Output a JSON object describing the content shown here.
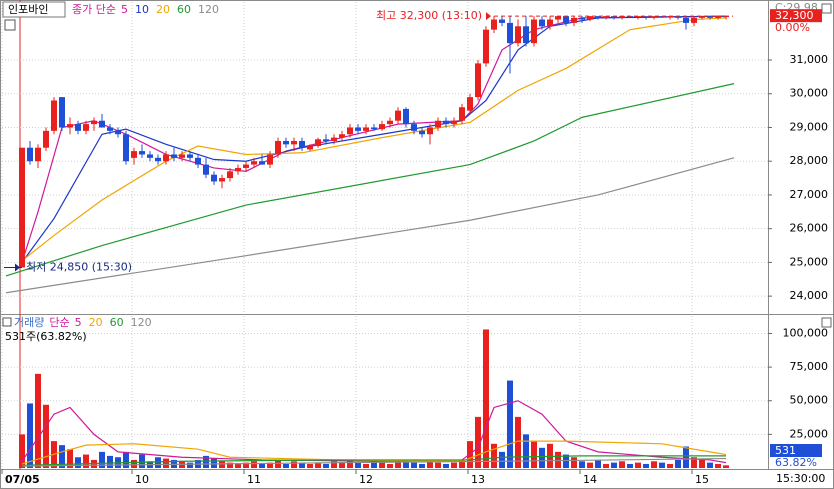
{
  "chart_data": [
    {
      "type": "candlestick",
      "name": "인포바인",
      "ma_label": "종가 단순",
      "open": [
        24850,
        28400,
        28000,
        28400,
        28900,
        29900,
        29000,
        29100,
        28900,
        29100,
        29200,
        29000,
        28900,
        28800,
        28100,
        28300,
        28200,
        28100,
        28000,
        28200,
        28100,
        28200,
        28100,
        27900,
        27600,
        27400,
        27500,
        27700,
        27800,
        27900,
        28000,
        27900,
        28200,
        28600,
        28500,
        28600,
        28350,
        28450,
        28650,
        28600,
        28700,
        28800,
        29000,
        28900,
        29000,
        28950,
        29100,
        29200,
        29550,
        29100,
        28900,
        28800,
        29000,
        29200,
        29100,
        29200,
        29500,
        29900,
        30900,
        31900,
        32200,
        32100,
        31500,
        32000,
        31500,
        32200,
        32000,
        32200,
        32300,
        32100,
        32250,
        32200,
        32300,
        32250,
        32300,
        32250,
        32300,
        32280,
        32300,
        32250,
        32300,
        32280,
        32300,
        32250,
        32100,
        32250,
        32300,
        32250,
        32300
      ],
      "high": [
        28400,
        28600,
        28500,
        29000,
        29900,
        29900,
        29300,
        29200,
        29200,
        29300,
        29400,
        29100,
        29000,
        28900,
        28400,
        28500,
        28300,
        28200,
        28300,
        28400,
        28300,
        28300,
        28200,
        28100,
        27700,
        27600,
        27800,
        27900,
        28000,
        28100,
        28200,
        28300,
        28700,
        28700,
        28700,
        28700,
        28500,
        28700,
        28800,
        28800,
        28900,
        29100,
        29100,
        29100,
        29100,
        29200,
        29300,
        29600,
        29600,
        29200,
        29000,
        29100,
        29300,
        29300,
        29300,
        29700,
        30000,
        31000,
        32000,
        32300,
        32300,
        32300,
        32200,
        32300,
        32300,
        32300,
        32300,
        32300,
        32300,
        32300,
        32300,
        32300,
        32300,
        32300,
        32300,
        32300,
        32300,
        32300,
        32300,
        32300,
        32300,
        32300,
        32300,
        32300,
        32300,
        32300,
        32300,
        32300,
        32300
      ],
      "low": [
        24850,
        27900,
        27800,
        28300,
        28800,
        28900,
        28800,
        28800,
        28800,
        28900,
        29000,
        28800,
        28700,
        27900,
        27900,
        28100,
        28000,
        27900,
        27900,
        28000,
        28000,
        28000,
        27800,
        27500,
        27300,
        27200,
        27400,
        27600,
        27700,
        27800,
        27900,
        27800,
        28100,
        28400,
        28300,
        28300,
        28300,
        28400,
        28500,
        28500,
        28600,
        28700,
        28800,
        28800,
        28900,
        28900,
        29000,
        29100,
        29000,
        28800,
        28700,
        28500,
        28900,
        29000,
        29000,
        29100,
        29400,
        29800,
        30800,
        31800,
        32000,
        30600,
        31400,
        31400,
        31400,
        31900,
        31900,
        32100,
        32000,
        32000,
        32100,
        32150,
        32200,
        32200,
        32200,
        32200,
        32250,
        32200,
        32200,
        32200,
        32250,
        32200,
        32200,
        31900,
        32000,
        32200,
        32200,
        32200,
        32200
      ],
      "close": [
        28400,
        28000,
        28400,
        28900,
        29800,
        29000,
        29100,
        28900,
        29100,
        29200,
        29000,
        28900,
        28800,
        28000,
        28300,
        28200,
        28100,
        28000,
        28200,
        28100,
        28200,
        28100,
        27900,
        27600,
        27400,
        27500,
        27700,
        27800,
        27900,
        28000,
        27900,
        28200,
        28600,
        28500,
        28600,
        28400,
        28450,
        28650,
        28600,
        28700,
        28800,
        29000,
        28900,
        29000,
        28950,
        29100,
        29200,
        29500,
        29100,
        28900,
        28800,
        29000,
        29200,
        29100,
        29200,
        29600,
        29900,
        30900,
        31900,
        32200,
        32100,
        31500,
        32000,
        31500,
        32200,
        32000,
        32200,
        32300,
        32100,
        32250,
        32200,
        32300,
        32250,
        32300,
        32250,
        32300,
        32280,
        32300,
        32250,
        32300,
        32280,
        32300,
        32250,
        32100,
        32250,
        32300,
        32250,
        32300,
        32300
      ],
      "up_color": "#e8211f",
      "down_color": "#1f4fd6",
      "series": [
        {
          "name": "5",
          "color": "#d0189a",
          "x": [
            0,
            2,
            5,
            9,
            13,
            18,
            24,
            28,
            33,
            40,
            47,
            55,
            57,
            60,
            64,
            70,
            88
          ],
          "values": [
            25000,
            26500,
            29000,
            29200,
            28800,
            28200,
            27800,
            27700,
            28300,
            28700,
            29100,
            29200,
            29700,
            31300,
            31900,
            32250,
            32300
          ]
        },
        {
          "name": "10",
          "color": "#1a35c9",
          "x": [
            0,
            4,
            10,
            13,
            18,
            24,
            28,
            35,
            45,
            55,
            58,
            62,
            66,
            72,
            88
          ],
          "values": [
            25000,
            26300,
            28800,
            28950,
            28500,
            28050,
            28000,
            28400,
            28800,
            29200,
            29800,
            31300,
            32000,
            32250,
            32300
          ]
        },
        {
          "name": "20",
          "color": "#f0a500",
          "x": [
            0,
            4,
            10,
            18,
            22,
            28,
            35,
            45,
            56,
            62,
            68,
            76,
            84,
            88
          ],
          "values": [
            25050,
            25800,
            26850,
            28000,
            28450,
            28200,
            28250,
            28700,
            29150,
            30100,
            30750,
            31900,
            32200,
            32250
          ]
        },
        {
          "name": "60",
          "color": "#1f9a2e",
          "x": [
            -2,
            10,
            28,
            56,
            64,
            70,
            89
          ],
          "values": [
            24600,
            25500,
            26700,
            27900,
            28600,
            29300,
            30300
          ]
        },
        {
          "name": "120",
          "color": "#8c8c8c",
          "x": [
            -2,
            28,
            56,
            72,
            89
          ],
          "values": [
            24100,
            25200,
            26250,
            27000,
            28100
          ]
        }
      ],
      "xlim": [
        -2.5,
        93.25
      ],
      "ylim": [
        23500,
        32720
      ],
      "xticks": [
        {
          "value": -2.5,
          "label": "07/05"
        },
        {
          "value": 13.75,
          "label": "10"
        },
        {
          "value": 27.75,
          "label": "11"
        },
        {
          "value": 41.75,
          "label": "12"
        },
        {
          "value": 55.75,
          "label": "13"
        },
        {
          "value": 69.75,
          "label": "14"
        },
        {
          "value": 83.75,
          "label": "15"
        }
      ],
      "yticks": [
        {
          "value": 24000,
          "label": "24,000"
        },
        {
          "value": 25000,
          "label": "25,000"
        },
        {
          "value": 26000,
          "label": "26,000"
        },
        {
          "value": 27000,
          "label": "27,000"
        },
        {
          "value": 28000,
          "label": "28,000"
        },
        {
          "value": 29000,
          "label": "29,000"
        },
        {
          "value": 30000,
          "label": "30,000"
        },
        {
          "value": 31000,
          "label": "31,000"
        }
      ],
      "high_mark": {
        "value": 32300,
        "label": "최고 32,300 (13:10)",
        "x": 59
      },
      "low_mark": {
        "value": 24850,
        "label": "최저 24,850 (15:30)",
        "x": 0
      },
      "last_price": {
        "value": 32300,
        "label": "32,300"
      },
      "change": "0.00%",
      "info": "C:29,98",
      "time_label": "15:30:00",
      "grid": true
    },
    {
      "type": "bar",
      "name": "거래량",
      "ma_label": "단순",
      "values": [
        25000,
        48000,
        70000,
        47000,
        20000,
        17000,
        14000,
        8000,
        10000,
        6000,
        12000,
        9000,
        8000,
        12000,
        6000,
        10000,
        5000,
        8000,
        7000,
        6000,
        5000,
        4000,
        6000,
        9000,
        7000,
        5000,
        4000,
        3000,
        4000,
        5000,
        3000,
        4000,
        6000,
        3000,
        5000,
        4000,
        3000,
        4000,
        3000,
        5000,
        4000,
        6000,
        4000,
        3000,
        5000,
        4000,
        3000,
        6000,
        5000,
        4000,
        3000,
        5000,
        4000,
        3000,
        4000,
        6000,
        20000,
        38000,
        103000,
        18000,
        12000,
        65000,
        38000,
        25000,
        20000,
        15000,
        18000,
        12000,
        10000,
        8000,
        5000,
        4000,
        6000,
        3000,
        4000,
        5000,
        3000,
        4000,
        3000,
        5000,
        4000,
        3000,
        6000,
        16000,
        8000,
        6000,
        4000,
        3000,
        2000
      ],
      "series": [
        {
          "name": "5",
          "color": "#d0189a",
          "x": [
            0,
            4,
            6,
            9,
            12,
            20,
            30,
            45,
            55,
            57,
            59,
            62,
            65,
            68,
            72,
            80,
            86,
            88
          ],
          "values": [
            5000,
            40000,
            45000,
            25000,
            12000,
            8000,
            6000,
            5000,
            6000,
            15000,
            45000,
            50000,
            40000,
            20000,
            12000,
            8000,
            6000,
            4000
          ]
        },
        {
          "name": "20",
          "color": "#f0a500",
          "x": [
            0,
            5,
            8,
            14,
            22,
            26,
            40,
            55,
            58,
            62,
            68,
            80,
            86,
            88
          ],
          "values": [
            3000,
            12000,
            17000,
            18000,
            14000,
            8000,
            6000,
            5000,
            12000,
            20000,
            20000,
            18000,
            12000,
            10000
          ]
        },
        {
          "name": "60",
          "color": "#1f9a2e",
          "x": [
            0,
            20,
            40,
            56,
            60,
            70,
            88
          ],
          "values": [
            2000,
            5000,
            6000,
            6000,
            8000,
            9000,
            9000
          ]
        },
        {
          "name": "120",
          "color": "#8c8c8c",
          "x": [
            0,
            40,
            60,
            88
          ],
          "values": [
            1500,
            4000,
            5000,
            7000
          ]
        }
      ],
      "ylim": [
        0,
        113000
      ],
      "yticks": [
        {
          "value": 25000,
          "label": "25,000"
        },
        {
          "value": 50000,
          "label": "50,000"
        },
        {
          "value": 75000,
          "label": "75,000"
        },
        {
          "value": 100000,
          "label": "100,000"
        }
      ],
      "last_volume": {
        "value": 531,
        "label": "531"
      },
      "ratio": "63.82%",
      "info": "531주(63.82%)",
      "grid": true
    }
  ]
}
